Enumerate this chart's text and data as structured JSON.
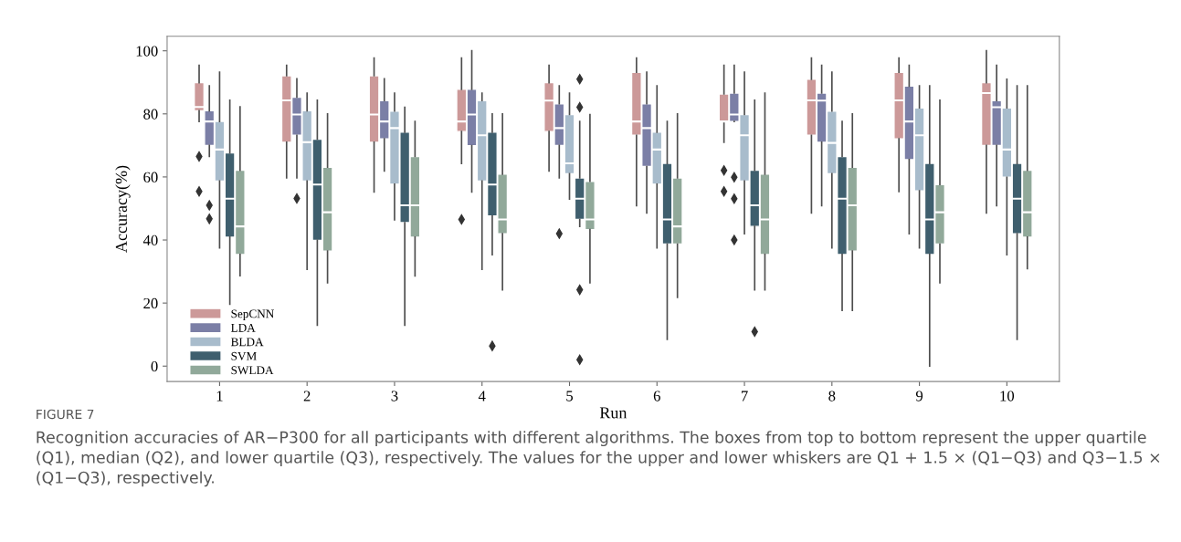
{
  "chart_data": {
    "type": "box",
    "xlabel": "Run",
    "ylabel": "Accuracy(%)",
    "categories": [
      "1",
      "2",
      "3",
      "4",
      "5",
      "6",
      "7",
      "8",
      "9",
      "10"
    ],
    "ylim": [
      -4.9,
      104.6
    ],
    "yticks": [
      0,
      20,
      40,
      60,
      80,
      100
    ],
    "grid": false,
    "legend": "bottom left",
    "series": [
      {
        "name": "SepCNN",
        "color": "#cc9999",
        "boxes": [
          {
            "low": 77.6,
            "q1": 81,
            "median": 82.2,
            "q3": 89.9,
            "high": 95.4,
            "outliers": [
              66.5,
              55.4
            ]
          },
          {
            "low": 59.7,
            "q1": 71,
            "median": 84.3,
            "q3": 92.1,
            "high": 95.4
          },
          {
            "low": 55.2,
            "q1": 71,
            "median": 79.8,
            "q3": 92.1,
            "high": 97.7
          },
          {
            "low": 64.3,
            "q1": 74.4,
            "median": 77.6,
            "q3": 87.8,
            "high": 97.7,
            "outliers": [
              46.5
            ]
          },
          {
            "low": 61.9,
            "q1": 74.4,
            "median": 84.2,
            "q3": 89.9,
            "high": 95.4
          },
          {
            "low": 50.9,
            "q1": 73.2,
            "median": 77.6,
            "q3": 93.2,
            "high": 97.7
          },
          {
            "low": 71,
            "q1": 77.6,
            "median": 77.6,
            "q3": 86.3,
            "high": 95.4,
            "outliers": [
              62.1,
              55.4
            ]
          },
          {
            "low": 48.6,
            "q1": 73.2,
            "median": 84.3,
            "q3": 91,
            "high": 97.7
          },
          {
            "low": 55.4,
            "q1": 72.1,
            "median": 84.3,
            "q3": 93.2,
            "high": 97.7
          },
          {
            "low": 48.6,
            "q1": 70,
            "median": 86.6,
            "q3": 89.9,
            "high": 100
          }
        ]
      },
      {
        "name": "LDA",
        "color": "#7b7fa6",
        "boxes": [
          {
            "low": 66.5,
            "q1": 70,
            "median": 77.6,
            "q3": 81,
            "high": 88.9,
            "outliers": [
              51,
              46.7
            ]
          },
          {
            "low": 59.7,
            "q1": 73.2,
            "median": 79.8,
            "q3": 85.3,
            "high": 91.1,
            "outliers": [
              53.2
            ]
          },
          {
            "low": 61.9,
            "q1": 72.1,
            "median": 77.6,
            "q3": 84.2,
            "high": 91.1
          },
          {
            "low": 55.2,
            "q1": 69.9,
            "median": 79.8,
            "q3": 87.8,
            "high": 100
          },
          {
            "low": 59.7,
            "q1": 70,
            "median": 75.5,
            "q3": 83.2,
            "high": 88.9,
            "outliers": [
              42
            ]
          },
          {
            "low": 48.6,
            "q1": 63.3,
            "median": 75.5,
            "q3": 83.2,
            "high": 93.2
          },
          {
            "low": 77.6,
            "q1": 77.6,
            "median": 79.8,
            "q3": 86.6,
            "high": 95.4,
            "outliers": [
              59.9,
              53.1,
              40
            ]
          },
          {
            "low": 50.9,
            "q1": 71,
            "median": 84.2,
            "q3": 86.6,
            "high": 95.4
          },
          {
            "low": 42,
            "q1": 65.5,
            "median": 77.6,
            "q3": 88.8,
            "high": 95.4
          },
          {
            "low": 50.9,
            "q1": 70,
            "median": 82.1,
            "q3": 84.2,
            "high": 95.4
          }
        ]
      },
      {
        "name": "BLDA",
        "color": "#a8bccc",
        "boxes": [
          {
            "low": 37.5,
            "q1": 58.7,
            "median": 68.7,
            "q3": 77.6,
            "high": 93.2
          },
          {
            "low": 30.7,
            "q1": 58.7,
            "median": 71,
            "q3": 81,
            "high": 86.6
          },
          {
            "low": 46.4,
            "q1": 57.7,
            "median": 75.5,
            "q3": 80.9,
            "high": 86.6
          },
          {
            "low": 30.7,
            "q1": 58.7,
            "median": 73.2,
            "q3": 84.2,
            "high": 86.6
          },
          {
            "low": 53,
            "q1": 61,
            "median": 64.3,
            "q3": 79.8,
            "high": 86.6
          },
          {
            "low": 37.5,
            "q1": 57.7,
            "median": 68.7,
            "q3": 74.2,
            "high": 88.9
          },
          {
            "low": 42,
            "q1": 58.7,
            "median": 73.2,
            "q3": 79.8,
            "high": 93.2
          },
          {
            "low": 37.5,
            "q1": 61,
            "median": 70.8,
            "q3": 80.9,
            "high": 93.2
          },
          {
            "low": 37.5,
            "q1": 55.6,
            "median": 73.2,
            "q3": 81.9,
            "high": 88.9
          },
          {
            "low": 35.3,
            "q1": 59.9,
            "median": 68.7,
            "q3": 81.9,
            "high": 91
          }
        ]
      },
      {
        "name": "SVM",
        "color": "#3f5f6e",
        "boxes": [
          {
            "low": 19.6,
            "q1": 40.9,
            "median": 53.1,
            "q3": 67.6,
            "high": 84.3
          },
          {
            "low": 13,
            "q1": 39.9,
            "median": 57.6,
            "q3": 72,
            "high": 84.3
          },
          {
            "low": 13,
            "q1": 45.5,
            "median": 51,
            "q3": 74.2,
            "high": 82.1
          },
          {
            "low": 35.3,
            "q1": 47.6,
            "median": 57.6,
            "q3": 74.2,
            "high": 80,
            "outliers": [
              6.4
            ]
          },
          {
            "low": 44.3,
            "q1": 46.5,
            "median": 53.1,
            "q3": 59.7,
            "high": 77.6,
            "outliers": [
              91,
              82.1,
              24.2,
              2
            ]
          },
          {
            "low": 8.5,
            "q1": 38.7,
            "median": 46.5,
            "q3": 64.3,
            "high": 77.6
          },
          {
            "low": 24.2,
            "q1": 44.3,
            "median": 51,
            "q3": 62.1,
            "high": 84.3,
            "outliers": [
              10.9
            ]
          },
          {
            "low": 17.7,
            "q1": 35.4,
            "median": 53.1,
            "q3": 66.5,
            "high": 77.6
          },
          {
            "low": 0,
            "q1": 35.4,
            "median": 46.5,
            "q3": 64.3,
            "high": 88.9
          },
          {
            "low": 8.5,
            "q1": 42,
            "median": 53.1,
            "q3": 64.3,
            "high": 88.9
          }
        ]
      },
      {
        "name": "SWLDA",
        "color": "#91a99a",
        "boxes": [
          {
            "low": 28.7,
            "q1": 35.4,
            "median": 44.3,
            "q3": 62.1,
            "high": 82.2
          },
          {
            "low": 26.4,
            "q1": 36.5,
            "median": 48.8,
            "q3": 63.1,
            "high": 80
          },
          {
            "low": 28.6,
            "q1": 40.9,
            "median": 51,
            "q3": 66.5,
            "high": 77.6
          },
          {
            "low": 24.2,
            "q1": 42,
            "median": 46.5,
            "q3": 60.9,
            "high": 80
          },
          {
            "low": 26.4,
            "q1": 43.3,
            "median": 46.5,
            "q3": 58.6,
            "high": 79.8
          },
          {
            "low": 21.8,
            "q1": 38.7,
            "median": 44.3,
            "q3": 59.7,
            "high": 80
          },
          {
            "low": 24.2,
            "q1": 35.4,
            "median": 46.5,
            "q3": 60.9,
            "high": 86.6
          },
          {
            "low": 17.7,
            "q1": 36.5,
            "median": 51,
            "q3": 63.1,
            "high": 80
          },
          {
            "low": 26.4,
            "q1": 38.7,
            "median": 48.8,
            "q3": 57.6,
            "high": 84.3
          },
          {
            "low": 30.9,
            "q1": 40.9,
            "median": 48.8,
            "q3": 62.1,
            "high": 88.9
          }
        ]
      }
    ],
    "annotations": [
      "FIGURE 7",
      "Recognition accuracies of AR−P300 for all participants with different algorithms. The boxes from top to bottom represent the upper quartile (Q1), median (Q2), and lower quartile (Q3), respectively. The values for the upper and lower whiskers are Q1 + 1.5 × (Q1−Q3) and Q3−1.5 × (Q1−Q3), respectively."
    ]
  }
}
